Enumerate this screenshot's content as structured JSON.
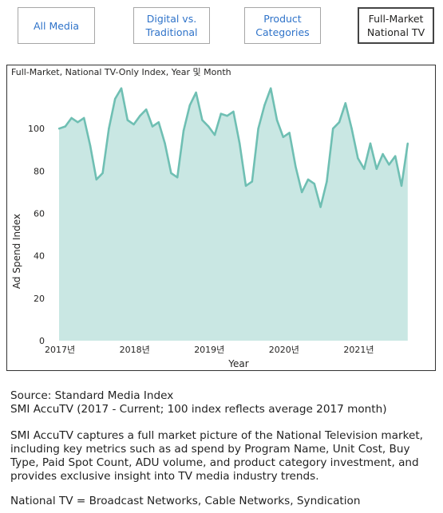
{
  "tabs": [
    {
      "label": "All Media",
      "active": false
    },
    {
      "label": "Digital vs.\nTraditional",
      "active": false
    },
    {
      "label": "Product\nCategories",
      "active": false
    },
    {
      "label": "Full-Market\nNational TV",
      "active": true
    }
  ],
  "colors": {
    "area_fill": "#c9e7e3",
    "line": "#6fbfb3",
    "link": "#2f73c9"
  },
  "chart_data": {
    "type": "area",
    "title": "Full-Market, National TV-Only Index, Year 및 Month",
    "xlabel": "Year",
    "ylabel": "Ad Spend Index",
    "ylim": [
      0,
      120
    ],
    "yticks": [
      0,
      20,
      40,
      60,
      80,
      100
    ],
    "grid": false,
    "x_tick_labels": [
      "2017년",
      "2018년",
      "2019년",
      "2020년",
      "2021년"
    ],
    "x": [
      "2017-01",
      "2017-02",
      "2017-03",
      "2017-04",
      "2017-05",
      "2017-06",
      "2017-07",
      "2017-08",
      "2017-09",
      "2017-10",
      "2017-11",
      "2017-12",
      "2018-01",
      "2018-02",
      "2018-03",
      "2018-04",
      "2018-05",
      "2018-06",
      "2018-07",
      "2018-08",
      "2018-09",
      "2018-10",
      "2018-11",
      "2018-12",
      "2019-01",
      "2019-02",
      "2019-03",
      "2019-04",
      "2019-05",
      "2019-06",
      "2019-07",
      "2019-08",
      "2019-09",
      "2019-10",
      "2019-11",
      "2019-12",
      "2020-01",
      "2020-02",
      "2020-03",
      "2020-04",
      "2020-05",
      "2020-06",
      "2020-07",
      "2020-08",
      "2020-09",
      "2020-10",
      "2020-11",
      "2020-12",
      "2021-01",
      "2021-02",
      "2021-03",
      "2021-04",
      "2021-05",
      "2021-06",
      "2021-07",
      "2021-08",
      "2021-09"
    ],
    "series": [
      {
        "values": [
          100,
          101,
          105,
          103,
          105,
          92,
          76,
          79,
          100,
          114,
          119,
          104,
          102,
          106,
          109,
          101,
          103,
          93,
          79,
          77,
          99,
          111,
          117,
          104,
          101,
          97,
          107,
          106,
          108,
          93,
          73,
          75,
          100,
          111,
          119,
          104,
          96,
          98,
          82,
          70,
          76,
          74,
          63,
          75,
          100,
          103,
          112,
          100,
          86,
          81,
          93,
          81,
          88,
          83,
          87,
          73,
          93
        ]
      }
    ]
  },
  "notes": {
    "source_line1": "Source: Standard Media Index",
    "source_line2": "SMI AccuTV (2017 - Current; 100 index reflects average 2017 month)",
    "description": "SMI AccuTV captures a full market picture of the National Television market, including key metrics such as ad spend by Program Name, Unit Cost, Buy Type, Paid Spot Count, ADU volume, and product category investment, and provides exclusive insight into TV media industry trends.",
    "national_tv": "National TV = Broadcast Networks, Cable Networks, Syndication"
  }
}
